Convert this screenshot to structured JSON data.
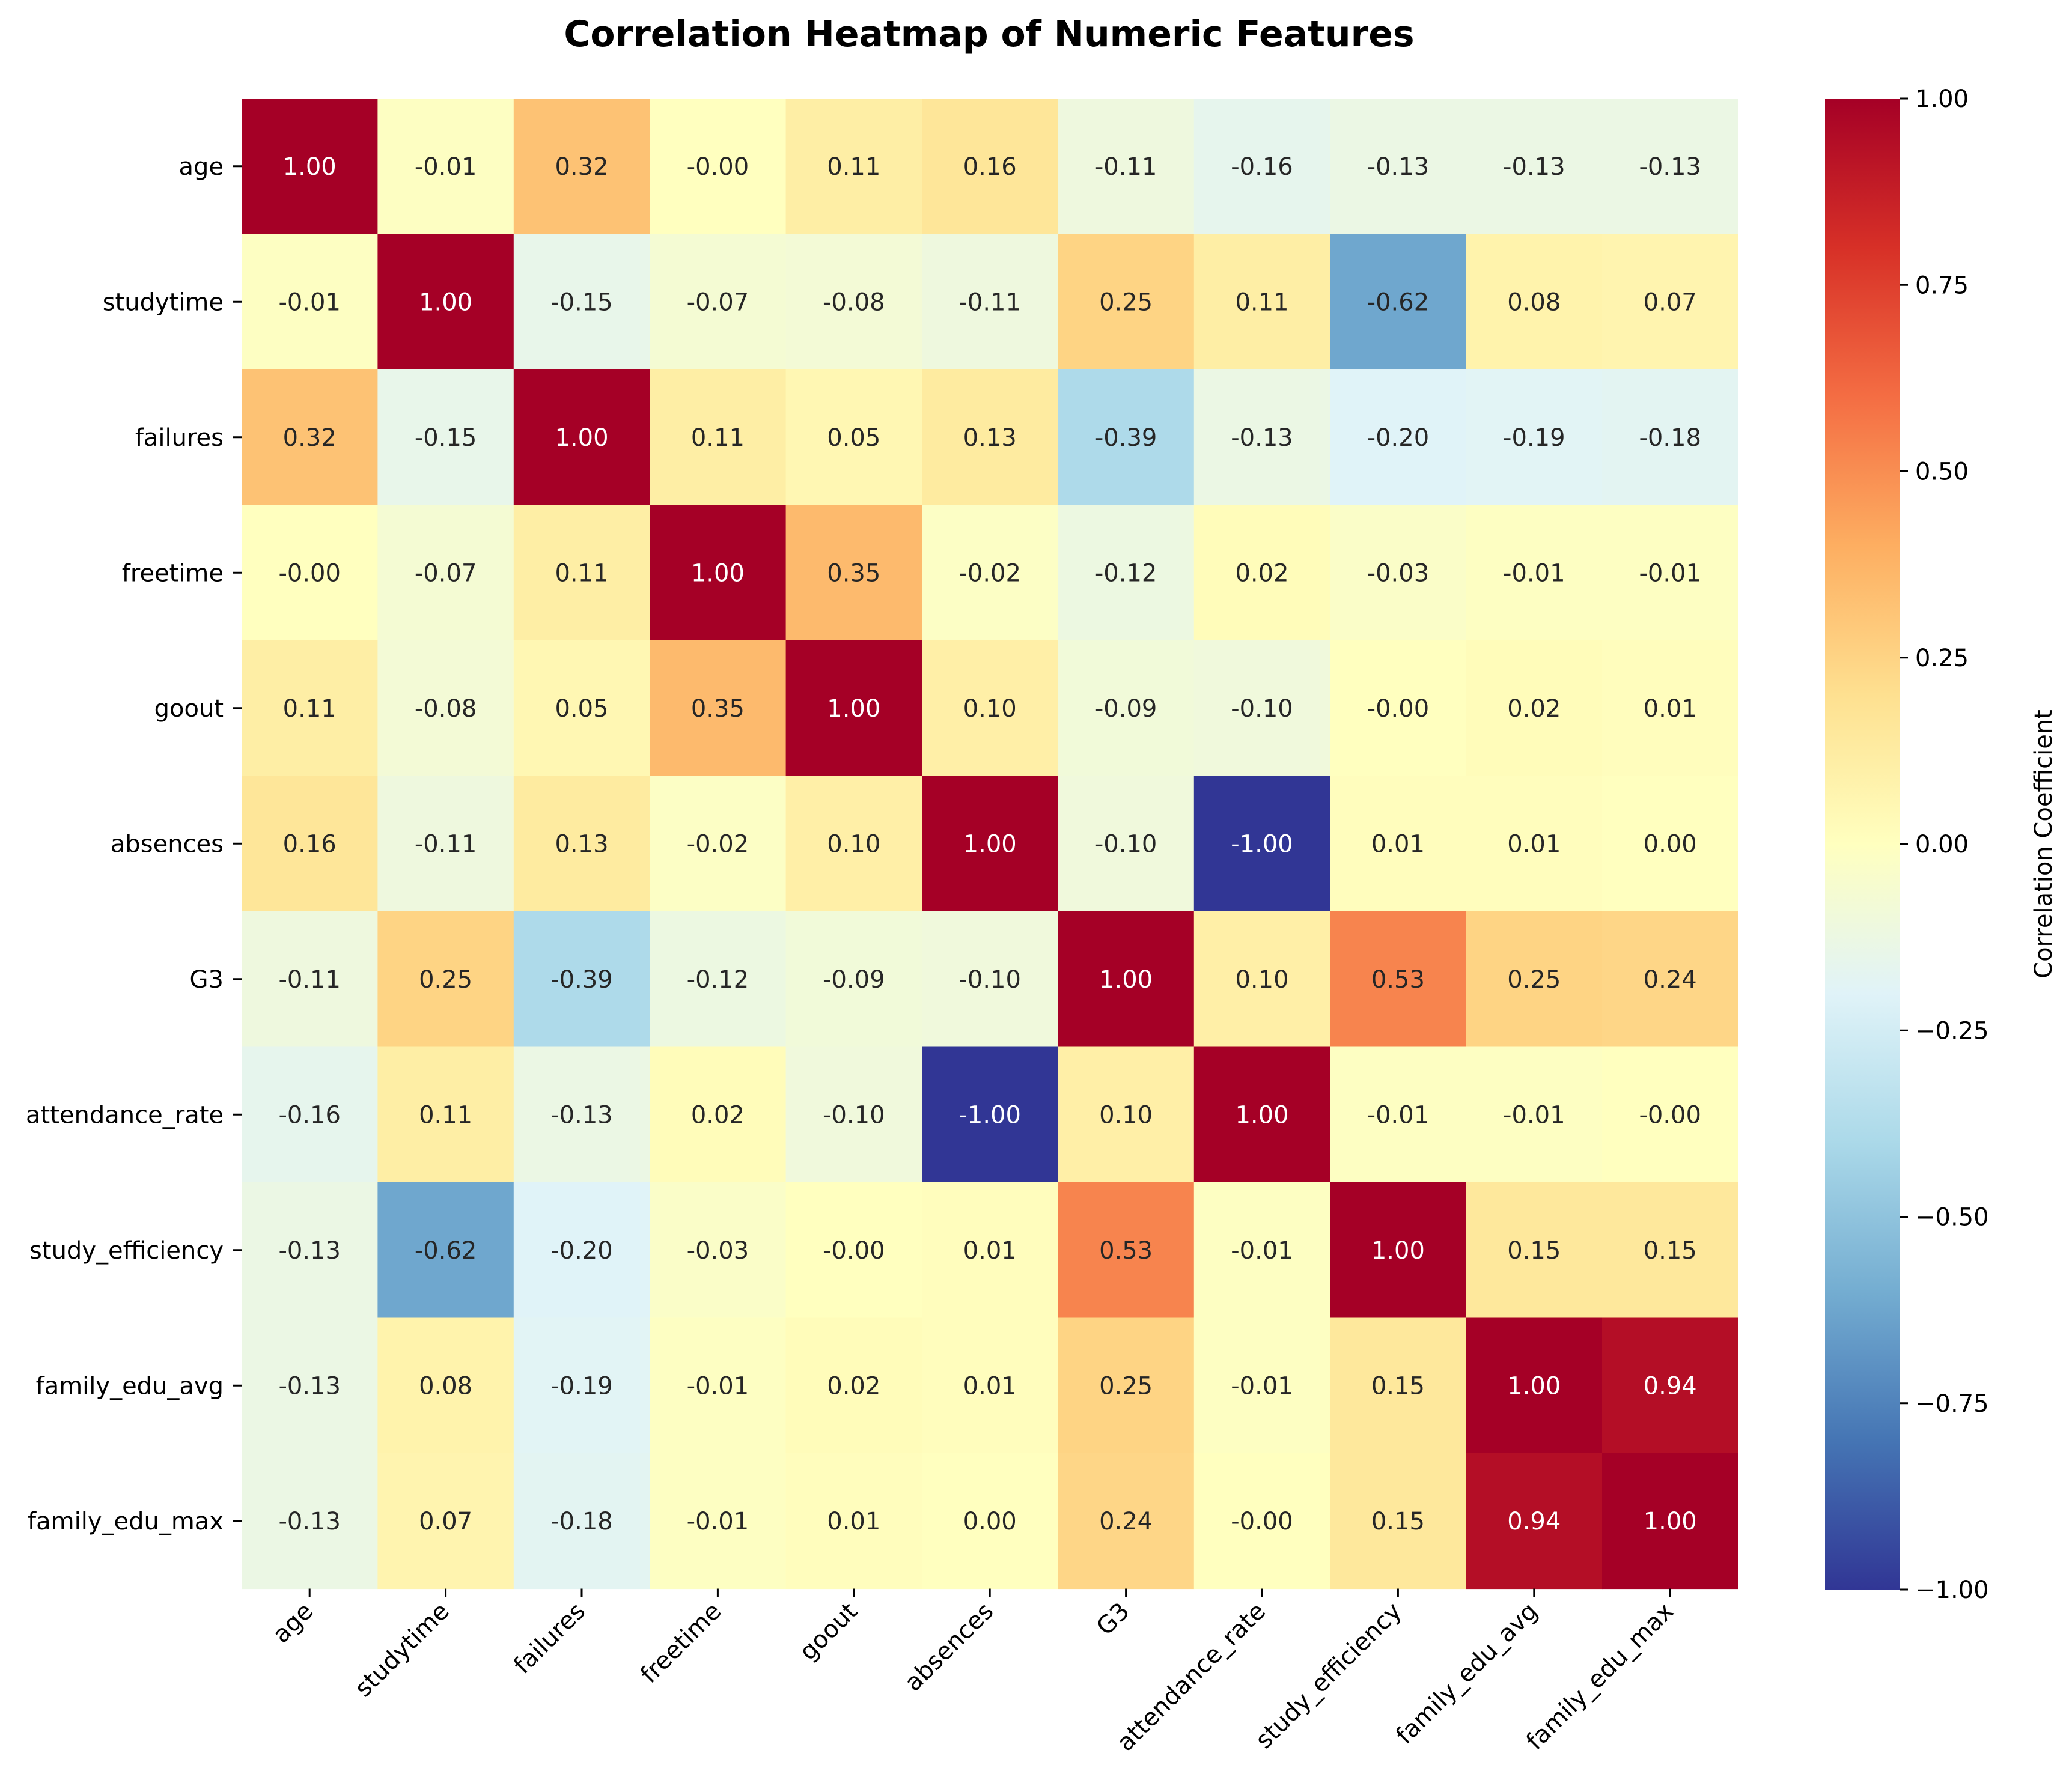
{
  "chart_data": {
    "type": "heatmap",
    "title": "Correlation Heatmap of Numeric Features",
    "rows": [
      "age",
      "studytime",
      "failures",
      "freetime",
      "goout",
      "absences",
      "G3",
      "attendance_rate",
      "study_efficiency",
      "family_edu_avg",
      "family_edu_max"
    ],
    "columns": [
      "age",
      "studytime",
      "failures",
      "freetime",
      "goout",
      "absences",
      "G3",
      "attendance_rate",
      "study_efficiency",
      "family_edu_avg",
      "family_edu_max"
    ],
    "values": [
      [
        1.0,
        -0.01,
        0.32,
        -0.0,
        0.11,
        0.16,
        -0.11,
        -0.16,
        -0.13,
        -0.13,
        -0.13
      ],
      [
        -0.01,
        1.0,
        -0.15,
        -0.07,
        -0.08,
        -0.11,
        0.25,
        0.11,
        -0.62,
        0.08,
        0.07
      ],
      [
        0.32,
        -0.15,
        1.0,
        0.11,
        0.05,
        0.13,
        -0.39,
        -0.13,
        -0.2,
        -0.19,
        -0.18
      ],
      [
        -0.0,
        -0.07,
        0.11,
        1.0,
        0.35,
        -0.02,
        -0.12,
        0.02,
        -0.03,
        -0.01,
        -0.01
      ],
      [
        0.11,
        -0.08,
        0.05,
        0.35,
        1.0,
        0.1,
        -0.09,
        -0.1,
        -0.0,
        0.02,
        0.01
      ],
      [
        0.16,
        -0.11,
        0.13,
        -0.02,
        0.1,
        1.0,
        -0.1,
        -1.0,
        0.01,
        0.01,
        0.0
      ],
      [
        -0.11,
        0.25,
        -0.39,
        -0.12,
        -0.09,
        -0.1,
        1.0,
        0.1,
        0.53,
        0.25,
        0.24
      ],
      [
        -0.16,
        0.11,
        -0.13,
        0.02,
        -0.1,
        -1.0,
        0.1,
        1.0,
        -0.01,
        -0.01,
        -0.0
      ],
      [
        -0.13,
        -0.62,
        -0.2,
        -0.03,
        -0.0,
        0.01,
        0.53,
        -0.01,
        1.0,
        0.15,
        0.15
      ],
      [
        -0.13,
        0.08,
        -0.19,
        -0.01,
        0.02,
        0.01,
        0.25,
        -0.01,
        0.15,
        1.0,
        0.94
      ],
      [
        -0.13,
        0.07,
        -0.18,
        -0.01,
        0.01,
        0.0,
        0.24,
        -0.0,
        0.15,
        0.94,
        1.0
      ]
    ],
    "value_format": "2 decimals",
    "colormap": "RdYlBu_r",
    "vmin": -1.0,
    "vmax": 1.0,
    "colorbar": {
      "label": "Correlation Coefficient",
      "ticks": [
        "1.00",
        "0.75",
        "0.50",
        "0.25",
        "0.00",
        "−0.25",
        "−0.50",
        "−0.75",
        "−1.00"
      ],
      "tick_values": [
        1.0,
        0.75,
        0.5,
        0.25,
        0.0,
        -0.25,
        -0.5,
        -0.75,
        -1.0
      ]
    },
    "x_tick_rotation": "45 degrees",
    "grid": false,
    "legend": "colorbar right"
  }
}
